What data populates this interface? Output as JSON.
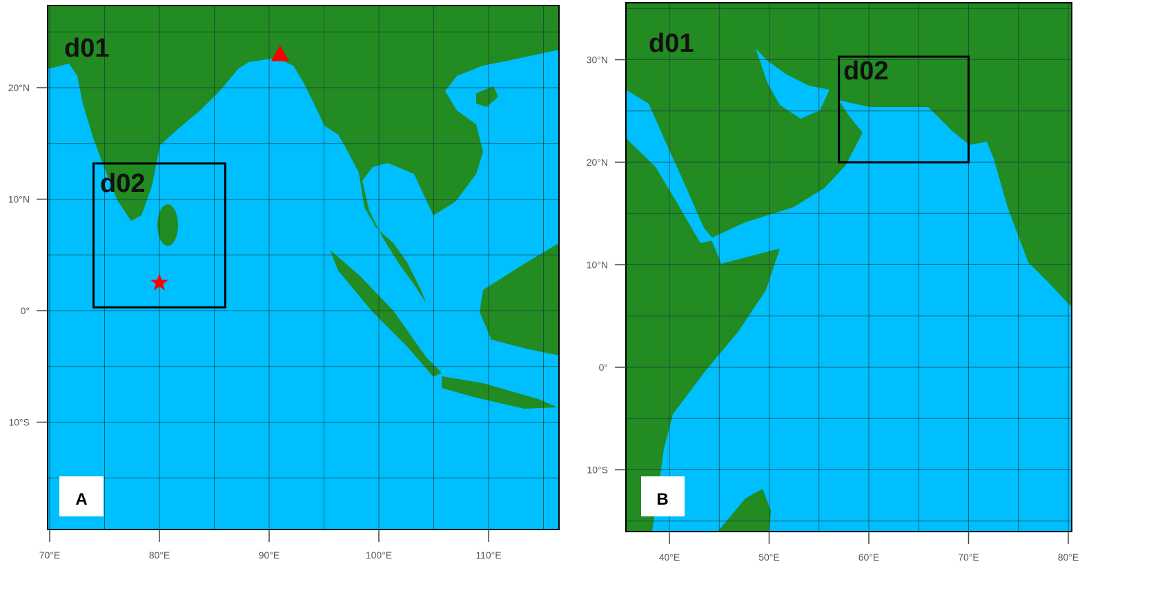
{
  "colors": {
    "ocean": "#00bfff",
    "land": "#228b22",
    "grid": "#1a3a3a",
    "marker": "#ff0000",
    "box": "#000000"
  },
  "panels": [
    {
      "id": "A",
      "label": "A",
      "outer_domain_label": "d01",
      "inner_domain_label": "d02",
      "inner_domain_extent": {
        "lon": [
          74,
          86
        ],
        "lat": [
          0.3,
          13.2
        ]
      },
      "lon_ticks": [
        "70°E",
        "80°E",
        "90°E",
        "100°E",
        "110°E"
      ],
      "lat_ticks": [
        "20°N",
        "10°N",
        "0°",
        "10°S"
      ],
      "lon_tick_values": [
        70,
        80,
        90,
        100,
        110
      ],
      "lat_tick_values": [
        20,
        10,
        0,
        -10
      ],
      "markers": [
        {
          "icon": "star-icon",
          "lon": 80,
          "lat": 2.5
        },
        {
          "icon": "triangle-icon",
          "lon": 91,
          "lat": 23
        }
      ]
    },
    {
      "id": "B",
      "label": "B",
      "outer_domain_label": "d01",
      "inner_domain_label": "d02",
      "inner_domain_extent": {
        "lon": [
          57,
          70
        ],
        "lat": [
          20,
          30.3
        ]
      },
      "lon_ticks": [
        "40°E",
        "50°E",
        "60°E",
        "70°E",
        "80°E"
      ],
      "lat_ticks": [
        "30°N",
        "20°N",
        "10°N",
        "0°",
        "10°S"
      ],
      "lon_tick_values": [
        40,
        50,
        60,
        70,
        80
      ],
      "lat_tick_values": [
        30,
        20,
        10,
        0,
        -10
      ]
    }
  ]
}
